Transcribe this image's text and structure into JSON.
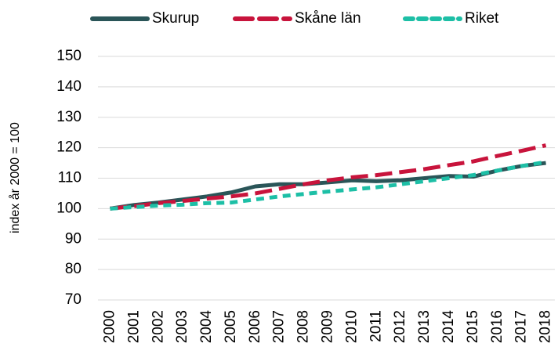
{
  "chart_data": {
    "type": "line",
    "y_label": "index år 2000 = 100",
    "categories": [
      "2000",
      "2001",
      "2002",
      "2003",
      "2004",
      "2005",
      "2006",
      "2007",
      "2008",
      "2009",
      "2010",
      "2011",
      "2012",
      "2013",
      "2014",
      "2015",
      "2016",
      "2017",
      "2018"
    ],
    "series": [
      {
        "name": "Skurup",
        "color": "#2a5558",
        "dash": "solid",
        "values": [
          100,
          101.2,
          102,
          103,
          104,
          105.3,
          107.3,
          108,
          108,
          108.6,
          109.3,
          109,
          109.3,
          110,
          110.7,
          110.5,
          112.5,
          114,
          115
        ]
      },
      {
        "name": "Skåne län",
        "color": "#c8143c",
        "dash": "long",
        "values": [
          100,
          100.8,
          101.8,
          102.5,
          103.3,
          104,
          105,
          106.5,
          108,
          109.3,
          110.3,
          111,
          112,
          113,
          114.3,
          115.5,
          117.3,
          119,
          120.8
        ]
      },
      {
        "name": "Riket",
        "color": "#1dbfa6",
        "dash": "short",
        "values": [
          100,
          100.5,
          101,
          101.3,
          101.8,
          102,
          103,
          104,
          104.8,
          105.6,
          106.3,
          107,
          108,
          109,
          110,
          111,
          112.5,
          114,
          115.3
        ]
      }
    ],
    "ylim": [
      70,
      150
    ],
    "yticks": [
      70,
      80,
      90,
      100,
      110,
      120,
      130,
      140,
      150
    ],
    "grid": true,
    "legend": "top"
  }
}
